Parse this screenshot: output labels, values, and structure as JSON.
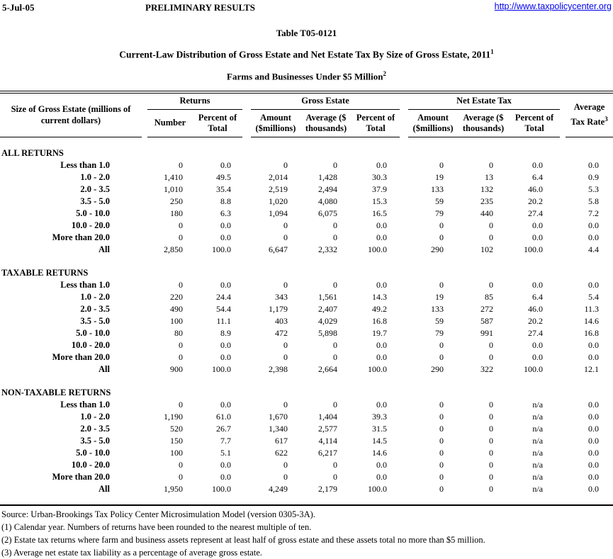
{
  "page_header": {
    "date": "5-Jul-05",
    "center": "PRELIMINARY RESULTS",
    "url": "http://www.taxpolicycenter.org"
  },
  "title": {
    "line1": "Table T05-0121",
    "line2": "Current-Law Distribution of Gross Estate and Net Estate Tax By Size of Gross Estate, 2011",
    "line2_sup": "1",
    "line3": "Farms and Businesses Under $5 Million",
    "line3_sup": "2"
  },
  "table": {
    "stub_header": {
      "l1": "Size of Gross Estate (millions of",
      "l2": "current dollars)"
    },
    "groups": {
      "returns": "Returns",
      "gross_estate": "Gross Estate",
      "net_estate_tax": "Net Estate Tax"
    },
    "avg_header": {
      "l1": "Average",
      "l2": "Tax Rate",
      "sup": "3"
    },
    "columns": [
      {
        "l1": "Number",
        "l2": ""
      },
      {
        "l1": "Percent of",
        "l2": "Total"
      },
      {
        "l1": "Amount",
        "l2": "($millions)"
      },
      {
        "l1": "Average ($",
        "l2": "thousands)"
      },
      {
        "l1": "Percent of",
        "l2": "Total"
      },
      {
        "l1": "Amount",
        "l2": "($millions)"
      },
      {
        "l1": "Average ($",
        "l2": "thousands)"
      },
      {
        "l1": "Percent of",
        "l2": "Total"
      }
    ],
    "sections": [
      {
        "label": "ALL RETURNS",
        "rows": [
          {
            "label": "Less than 1.0",
            "values": [
              "0",
              "0.0",
              "0",
              "0",
              "0.0",
              "0",
              "0",
              "0.0",
              "0.0"
            ]
          },
          {
            "label": "1.0 - 2.0",
            "values": [
              "1,410",
              "49.5",
              "2,014",
              "1,428",
              "30.3",
              "19",
              "13",
              "6.4",
              "0.9"
            ]
          },
          {
            "label": "2.0 - 3.5",
            "values": [
              "1,010",
              "35.4",
              "2,519",
              "2,494",
              "37.9",
              "133",
              "132",
              "46.0",
              "5.3"
            ]
          },
          {
            "label": "3.5 - 5.0",
            "values": [
              "250",
              "8.8",
              "1,020",
              "4,080",
              "15.3",
              "59",
              "235",
              "20.2",
              "5.8"
            ]
          },
          {
            "label": "5.0 - 10.0",
            "values": [
              "180",
              "6.3",
              "1,094",
              "6,075",
              "16.5",
              "79",
              "440",
              "27.4",
              "7.2"
            ]
          },
          {
            "label": "10.0 - 20.0",
            "values": [
              "0",
              "0.0",
              "0",
              "0",
              "0.0",
              "0",
              "0",
              "0.0",
              "0.0"
            ]
          },
          {
            "label": "More than 20.0",
            "values": [
              "0",
              "0.0",
              "0",
              "0",
              "0.0",
              "0",
              "0",
              "0.0",
              "0.0"
            ]
          },
          {
            "label": "All",
            "values": [
              "2,850",
              "100.0",
              "6,647",
              "2,332",
              "100.0",
              "290",
              "102",
              "100.0",
              "4.4"
            ]
          }
        ]
      },
      {
        "label": "TAXABLE RETURNS",
        "rows": [
          {
            "label": "Less than 1.0",
            "values": [
              "0",
              "0.0",
              "0",
              "0",
              "0.0",
              "0",
              "0",
              "0.0",
              "0.0"
            ]
          },
          {
            "label": "1.0 - 2.0",
            "values": [
              "220",
              "24.4",
              "343",
              "1,561",
              "14.3",
              "19",
              "85",
              "6.4",
              "5.4"
            ]
          },
          {
            "label": "2.0 - 3.5",
            "values": [
              "490",
              "54.4",
              "1,179",
              "2,407",
              "49.2",
              "133",
              "272",
              "46.0",
              "11.3"
            ]
          },
          {
            "label": "3.5 - 5.0",
            "values": [
              "100",
              "11.1",
              "403",
              "4,029",
              "16.8",
              "59",
              "587",
              "20.2",
              "14.6"
            ]
          },
          {
            "label": "5.0 - 10.0",
            "values": [
              "80",
              "8.9",
              "472",
              "5,898",
              "19.7",
              "79",
              "991",
              "27.4",
              "16.8"
            ]
          },
          {
            "label": "10.0 - 20.0",
            "values": [
              "0",
              "0.0",
              "0",
              "0",
              "0.0",
              "0",
              "0",
              "0.0",
              "0.0"
            ]
          },
          {
            "label": "More than 20.0",
            "values": [
              "0",
              "0.0",
              "0",
              "0",
              "0.0",
              "0",
              "0",
              "0.0",
              "0.0"
            ]
          },
          {
            "label": "All",
            "values": [
              "900",
              "100.0",
              "2,398",
              "2,664",
              "100.0",
              "290",
              "322",
              "100.0",
              "12.1"
            ]
          }
        ]
      },
      {
        "label": "NON-TAXABLE RETURNS",
        "rows": [
          {
            "label": "Less than 1.0",
            "values": [
              "0",
              "0.0",
              "0",
              "0",
              "0.0",
              "0",
              "0",
              "n/a",
              "0.0"
            ]
          },
          {
            "label": "1.0 - 2.0",
            "values": [
              "1,190",
              "61.0",
              "1,670",
              "1,404",
              "39.3",
              "0",
              "0",
              "n/a",
              "0.0"
            ]
          },
          {
            "label": "2.0 - 3.5",
            "values": [
              "520",
              "26.7",
              "1,340",
              "2,577",
              "31.5",
              "0",
              "0",
              "n/a",
              "0.0"
            ]
          },
          {
            "label": "3.5 - 5.0",
            "values": [
              "150",
              "7.7",
              "617",
              "4,114",
              "14.5",
              "0",
              "0",
              "n/a",
              "0.0"
            ]
          },
          {
            "label": "5.0 - 10.0",
            "values": [
              "100",
              "5.1",
              "622",
              "6,217",
              "14.6",
              "0",
              "0",
              "n/a",
              "0.0"
            ]
          },
          {
            "label": "10.0 - 20.0",
            "values": [
              "0",
              "0.0",
              "0",
              "0",
              "0.0",
              "0",
              "0",
              "n/a",
              "0.0"
            ]
          },
          {
            "label": "More than 20.0",
            "values": [
              "0",
              "0.0",
              "0",
              "0",
              "0.0",
              "0",
              "0",
              "n/a",
              "0.0"
            ]
          },
          {
            "label": "All",
            "values": [
              "1,950",
              "100.0",
              "4,249",
              "2,179",
              "100.0",
              "0",
              "0",
              "n/a",
              "0.0"
            ]
          }
        ]
      }
    ]
  },
  "footnotes": [
    "Source: Urban-Brookings Tax Policy Center Microsimulation Model (version 0305-3A).",
    "(1) Calendar year. Numbers of returns have been rounded to the nearest multiple of ten.",
    "(2) Estate tax returns where farm and business assets represent at least half of gross estate and these assets total no more than $5 million.",
    "(3) Average net estate tax liability as a percentage of average gross estate."
  ],
  "colors": {
    "link": "#0000EE",
    "text": "#000000",
    "background": "#ffffff"
  }
}
